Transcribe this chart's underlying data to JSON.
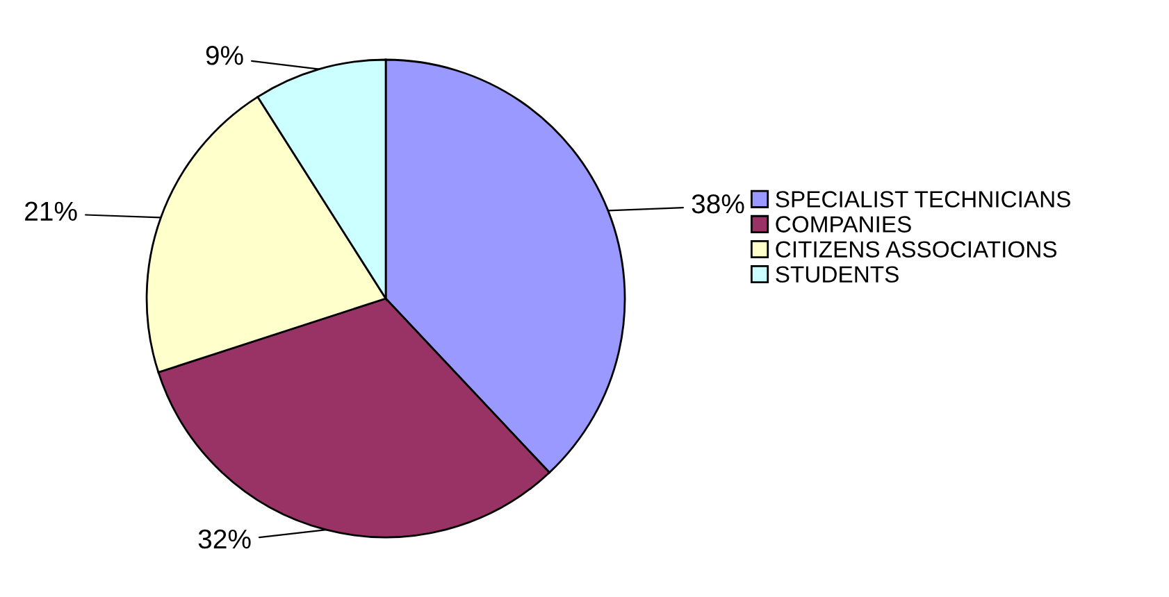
{
  "chart_data": {
    "type": "pie",
    "categories": [
      "SPECIALIST TECHNICIANS",
      "COMPANIES",
      "CITIZENS ASSOCIATIONS",
      "STUDENTS"
    ],
    "values": [
      38,
      32,
      21,
      9
    ],
    "colors": [
      "#9999ff",
      "#993366",
      "#ffffcc",
      "#ccffff"
    ],
    "value_labels": [
      "38%",
      "32%",
      "21%",
      "9%"
    ],
    "legend": "right"
  }
}
